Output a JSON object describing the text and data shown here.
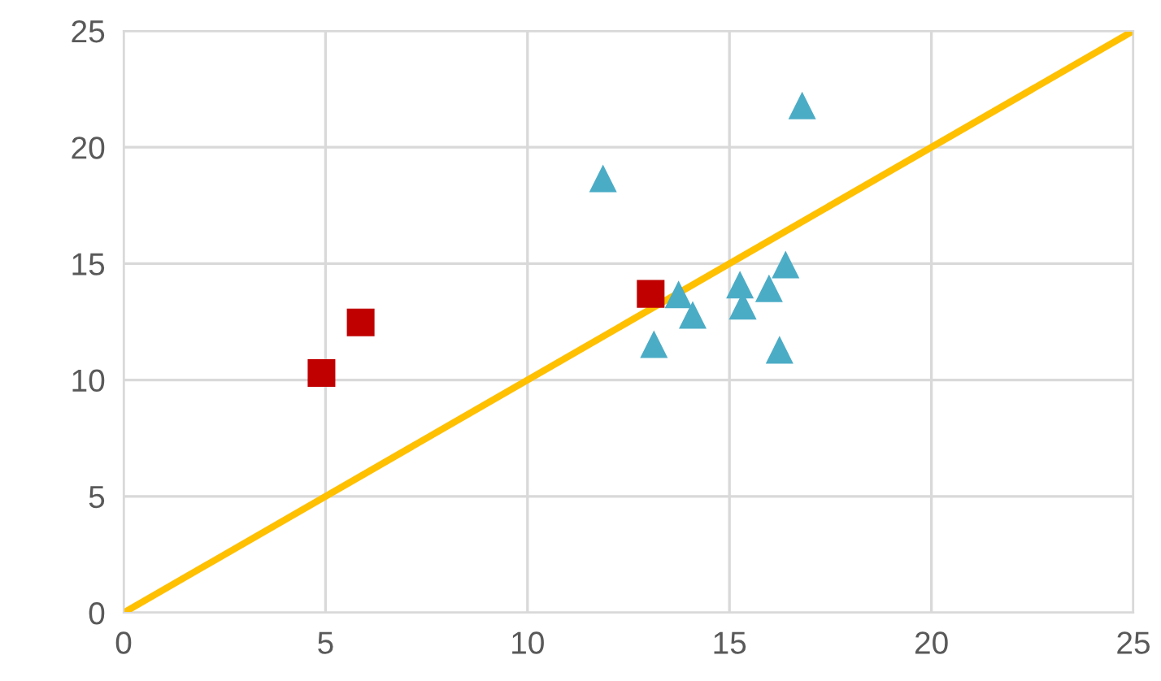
{
  "chart_data": {
    "type": "scatter",
    "xlim": [
      0,
      25
    ],
    "ylim": [
      0,
      25
    ],
    "xticks": [
      0,
      5,
      10,
      15,
      20,
      25
    ],
    "yticks": [
      0,
      5,
      10,
      15,
      20,
      25
    ],
    "grid": true,
    "series": [
      {
        "type": "line",
        "color": "#ffc000",
        "x": [
          0,
          25
        ],
        "values": [
          0,
          25
        ],
        "marker": "none"
      },
      {
        "color": "#4bacc6",
        "marker": "triangle",
        "x": [
          16.8,
          11.87,
          13.74,
          14.09,
          13.13,
          15.26,
          15.33,
          15.98,
          16.39,
          16.24
        ],
        "values": [
          21.8,
          18.66,
          13.68,
          12.8,
          11.54,
          14.1,
          13.19,
          13.94,
          14.96,
          11.3
        ]
      },
      {
        "color": "#c00000",
        "marker": "square",
        "x": [
          4.9,
          5.87,
          13.05
        ],
        "values": [
          10.3,
          12.47,
          13.7
        ]
      }
    ]
  }
}
